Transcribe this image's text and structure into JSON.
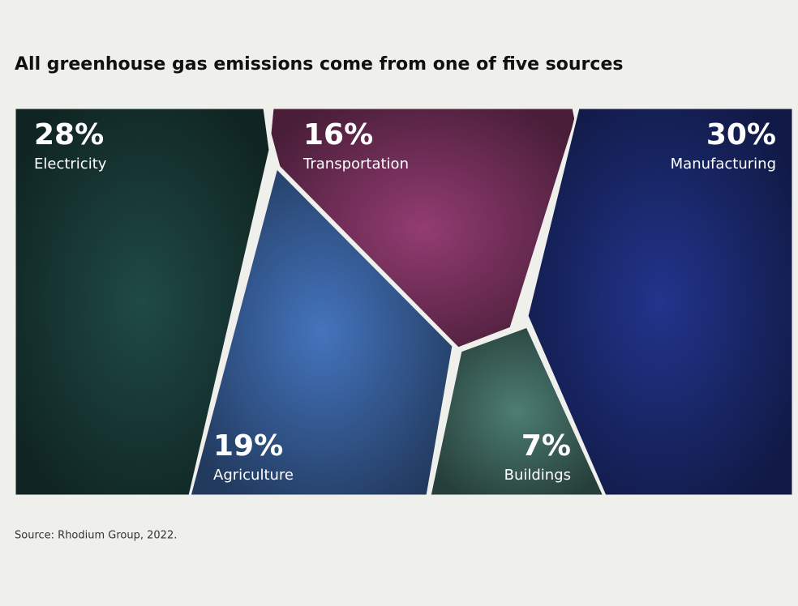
{
  "chart_data": {
    "type": "voronoi",
    "title": "All greenhouse gas emissions come from one of five sources",
    "categories": [
      "Electricity",
      "Transportation",
      "Manufacturing",
      "Agriculture",
      "Buildings"
    ],
    "values": [
      28,
      16,
      30,
      19,
      7
    ],
    "value_labels": [
      "28%",
      "16%",
      "30%",
      "19%",
      "7%"
    ],
    "colors": [
      "#1f4a46",
      "#933c72",
      "#22348c",
      "#4474bd",
      "#4c7d73"
    ],
    "source": "Source: Rhodium Group, 2022."
  }
}
